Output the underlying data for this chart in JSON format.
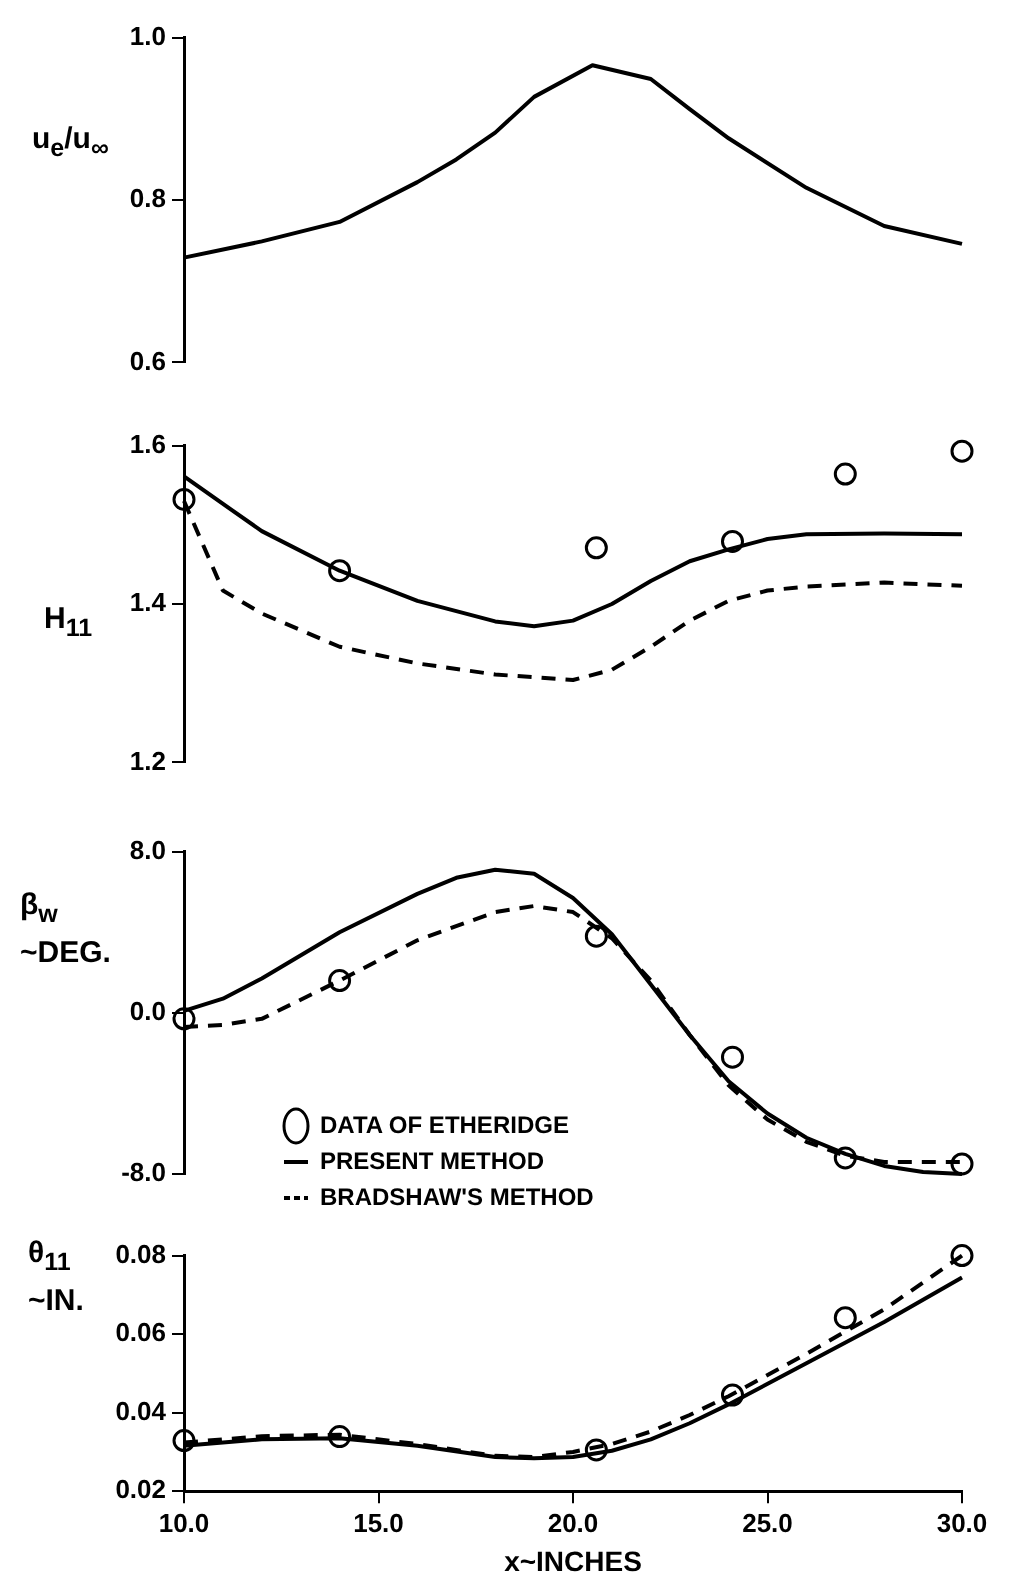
{
  "chart_data": [
    {
      "type": "line",
      "ylabel": "u$_{e}$/u$_{∞}$",
      "xlim": [
        10,
        30
      ],
      "ylim": [
        0.6,
        1.0
      ],
      "yticks": [
        {
          "value": 1.0,
          "label": "1.0"
        },
        0.8,
        0.6
      ],
      "tick_labels": "y",
      "grid": false,
      "series": [
        {
          "type": "line",
          "color": "#000000",
          "line_style": "solid",
          "marker": "none",
          "x": [
            10,
            12,
            14,
            16,
            17,
            18,
            19,
            20.5,
            22,
            23,
            24,
            26,
            28,
            30
          ],
          "values": [
            0.729,
            0.749,
            0.773,
            0.822,
            0.85,
            0.883,
            0.927,
            0.966,
            0.949,
            0.912,
            0.876,
            0.815,
            0.768,
            0.746
          ]
        }
      ]
    },
    {
      "type": "line",
      "ylabel": "H$_{11}$",
      "xlim": [
        10,
        30
      ],
      "ylim": [
        1.2,
        1.6
      ],
      "yticks": [
        1.6,
        1.4,
        1.2
      ],
      "tick_labels": "y",
      "grid": false,
      "series": [
        {
          "type": "line",
          "color": "#000000",
          "line_style": "solid",
          "marker": "none",
          "x": [
            10,
            12,
            14,
            16,
            18,
            19,
            20,
            21,
            22,
            23,
            24,
            25,
            26,
            28,
            30
          ],
          "values": [
            1.561,
            1.492,
            1.442,
            1.404,
            1.378,
            1.372,
            1.379,
            1.4,
            1.429,
            1.454,
            1.469,
            1.482,
            1.488,
            1.489,
            1.488
          ]
        },
        {
          "type": "line",
          "color": "#000000",
          "line_style": "dashed",
          "marker": "none",
          "x": [
            10,
            11,
            12,
            14,
            16,
            18,
            20,
            21,
            22,
            23,
            24,
            25,
            26,
            28,
            30
          ],
          "values": [
            1.53,
            1.417,
            1.388,
            1.346,
            1.325,
            1.311,
            1.304,
            1.317,
            1.346,
            1.379,
            1.404,
            1.417,
            1.422,
            1.427,
            1.423
          ]
        },
        {
          "type": "scatter",
          "color": "#000000",
          "marker": "circle",
          "x": [
            10,
            14,
            20.6,
            24.1,
            27,
            30
          ],
          "values": [
            1.532,
            1.442,
            1.471,
            1.479,
            1.564,
            1.593
          ]
        }
      ]
    },
    {
      "type": "line",
      "ylabel": "β$_{w}$\n~DEG.",
      "xlim": [
        10,
        30
      ],
      "ylim": [
        -8,
        8
      ],
      "yticks": [
        {
          "value": 8,
          "label": "8.0"
        },
        {
          "value": 0,
          "label": "0.0"
        },
        {
          "value": -8,
          "label": "-8.0"
        }
      ],
      "tick_labels": "y",
      "grid": false,
      "legend": "bottom",
      "series": [
        {
          "name": "DATA OF ETHERIDGE",
          "type": "scatter",
          "color": "#000000",
          "marker": "circle",
          "x": [
            10,
            14,
            20.6,
            24.1,
            27,
            30
          ],
          "values": [
            -0.3,
            1.6,
            3.8,
            -2.2,
            -7.2,
            -7.5
          ]
        },
        {
          "name": "PRESENT METHOD",
          "type": "line",
          "color": "#000000",
          "line_style": "solid",
          "marker": "none",
          "x": [
            10,
            11,
            12,
            14,
            16,
            17,
            18,
            19,
            20,
            21,
            22,
            23,
            24,
            25,
            26,
            27,
            28,
            29,
            30
          ],
          "values": [
            0.1,
            0.7,
            1.7,
            4.0,
            5.9,
            6.7,
            7.1,
            6.9,
            5.7,
            3.9,
            1.4,
            -1.1,
            -3.4,
            -5.0,
            -6.2,
            -7.0,
            -7.6,
            -7.9,
            -8.0
          ]
        },
        {
          "name": "BRADSHAW'S METHOD",
          "type": "line",
          "color": "#000000",
          "line_style": "dashed",
          "marker": "none",
          "x": [
            10,
            11,
            12,
            14,
            16,
            18,
            19,
            20,
            21,
            22,
            23,
            24,
            25,
            26,
            27,
            28,
            30
          ],
          "values": [
            -0.7,
            -0.6,
            -0.3,
            1.6,
            3.6,
            5.0,
            5.3,
            5.0,
            3.7,
            1.6,
            -1.1,
            -3.6,
            -5.3,
            -6.4,
            -7.1,
            -7.4,
            -7.4
          ]
        }
      ]
    },
    {
      "type": "line",
      "ylabel": "θ$_{11}$\n~IN.",
      "xlabel": "x~INCHES",
      "xlim": [
        10,
        30
      ],
      "xticks": [
        {
          "value": 10,
          "label": "10.0"
        },
        {
          "value": 15,
          "label": "15.0"
        },
        {
          "value": 20,
          "label": "20.0"
        },
        {
          "value": 25,
          "label": "25.0"
        },
        {
          "value": 30,
          "label": "30.0"
        }
      ],
      "ylim": [
        0.02,
        0.08
      ],
      "yticks": [
        0.08,
        0.06,
        0.04,
        0.02
      ],
      "grid": false,
      "series": [
        {
          "type": "line",
          "color": "#000000",
          "line_style": "solid",
          "marker": "none",
          "x": [
            10,
            12,
            14,
            16,
            18,
            19,
            20,
            21,
            22,
            23,
            24,
            26,
            28,
            30
          ],
          "values": [
            0.0316,
            0.0332,
            0.0335,
            0.0316,
            0.0287,
            0.0284,
            0.0287,
            0.0303,
            0.0332,
            0.0373,
            0.0421,
            0.0526,
            0.0631,
            0.0744
          ]
        },
        {
          "type": "line",
          "color": "#000000",
          "line_style": "dashed",
          "marker": "none",
          "x": [
            10,
            12,
            14,
            16,
            18,
            19,
            20,
            21,
            22,
            23,
            24,
            26,
            28,
            30
          ],
          "values": [
            0.0324,
            0.034,
            0.0344,
            0.032,
            0.029,
            0.0287,
            0.03,
            0.032,
            0.0352,
            0.0394,
            0.0442,
            0.055,
            0.0663,
            0.08
          ]
        },
        {
          "type": "scatter",
          "color": "#000000",
          "marker": "circle",
          "x": [
            10,
            14,
            20.6,
            24.1,
            27,
            30
          ],
          "values": [
            0.0329,
            0.0339,
            0.0305,
            0.0445,
            0.0642,
            0.08
          ]
        }
      ]
    }
  ]
}
